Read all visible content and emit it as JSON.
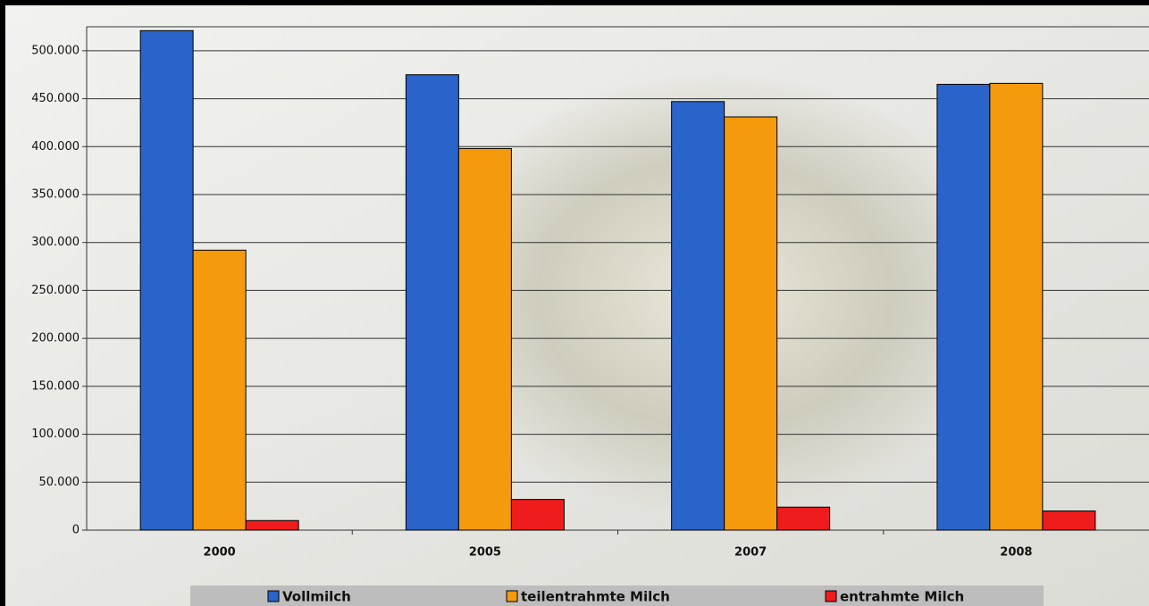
{
  "chart_data": {
    "type": "bar",
    "categories": [
      "2000",
      "2005",
      "2007",
      "2008"
    ],
    "series": [
      {
        "name": "Vollmilch",
        "color": "#2a63c9",
        "values": [
          521000,
          475000,
          447000,
          465000
        ]
      },
      {
        "name": "teilentrahmte Milch",
        "color": "#f59a0c",
        "values": [
          292000,
          398000,
          431000,
          466000
        ]
      },
      {
        "name": "entrahmte Milch",
        "color": "#ee1c1c",
        "values": [
          10000,
          32000,
          24000,
          20000
        ]
      }
    ],
    "ylim": [
      0,
      525000
    ],
    "yticks": [
      0,
      {
        "value": 50000,
        "label": "50.000"
      },
      {
        "value": 100000,
        "label": "100.000"
      },
      {
        "value": 150000,
        "label": "150.000"
      },
      {
        "value": 200000,
        "label": "200.000"
      },
      {
        "value": 250000,
        "label": "250.000"
      },
      {
        "value": 300000,
        "label": "300.000"
      },
      {
        "value": 350000,
        "label": "350.000"
      },
      {
        "value": 400000,
        "label": "400.000"
      },
      {
        "value": 450000,
        "label": "450.000"
      },
      {
        "value": 500000,
        "label": "500.000"
      }
    ],
    "grid": true,
    "legend": "bottom"
  }
}
